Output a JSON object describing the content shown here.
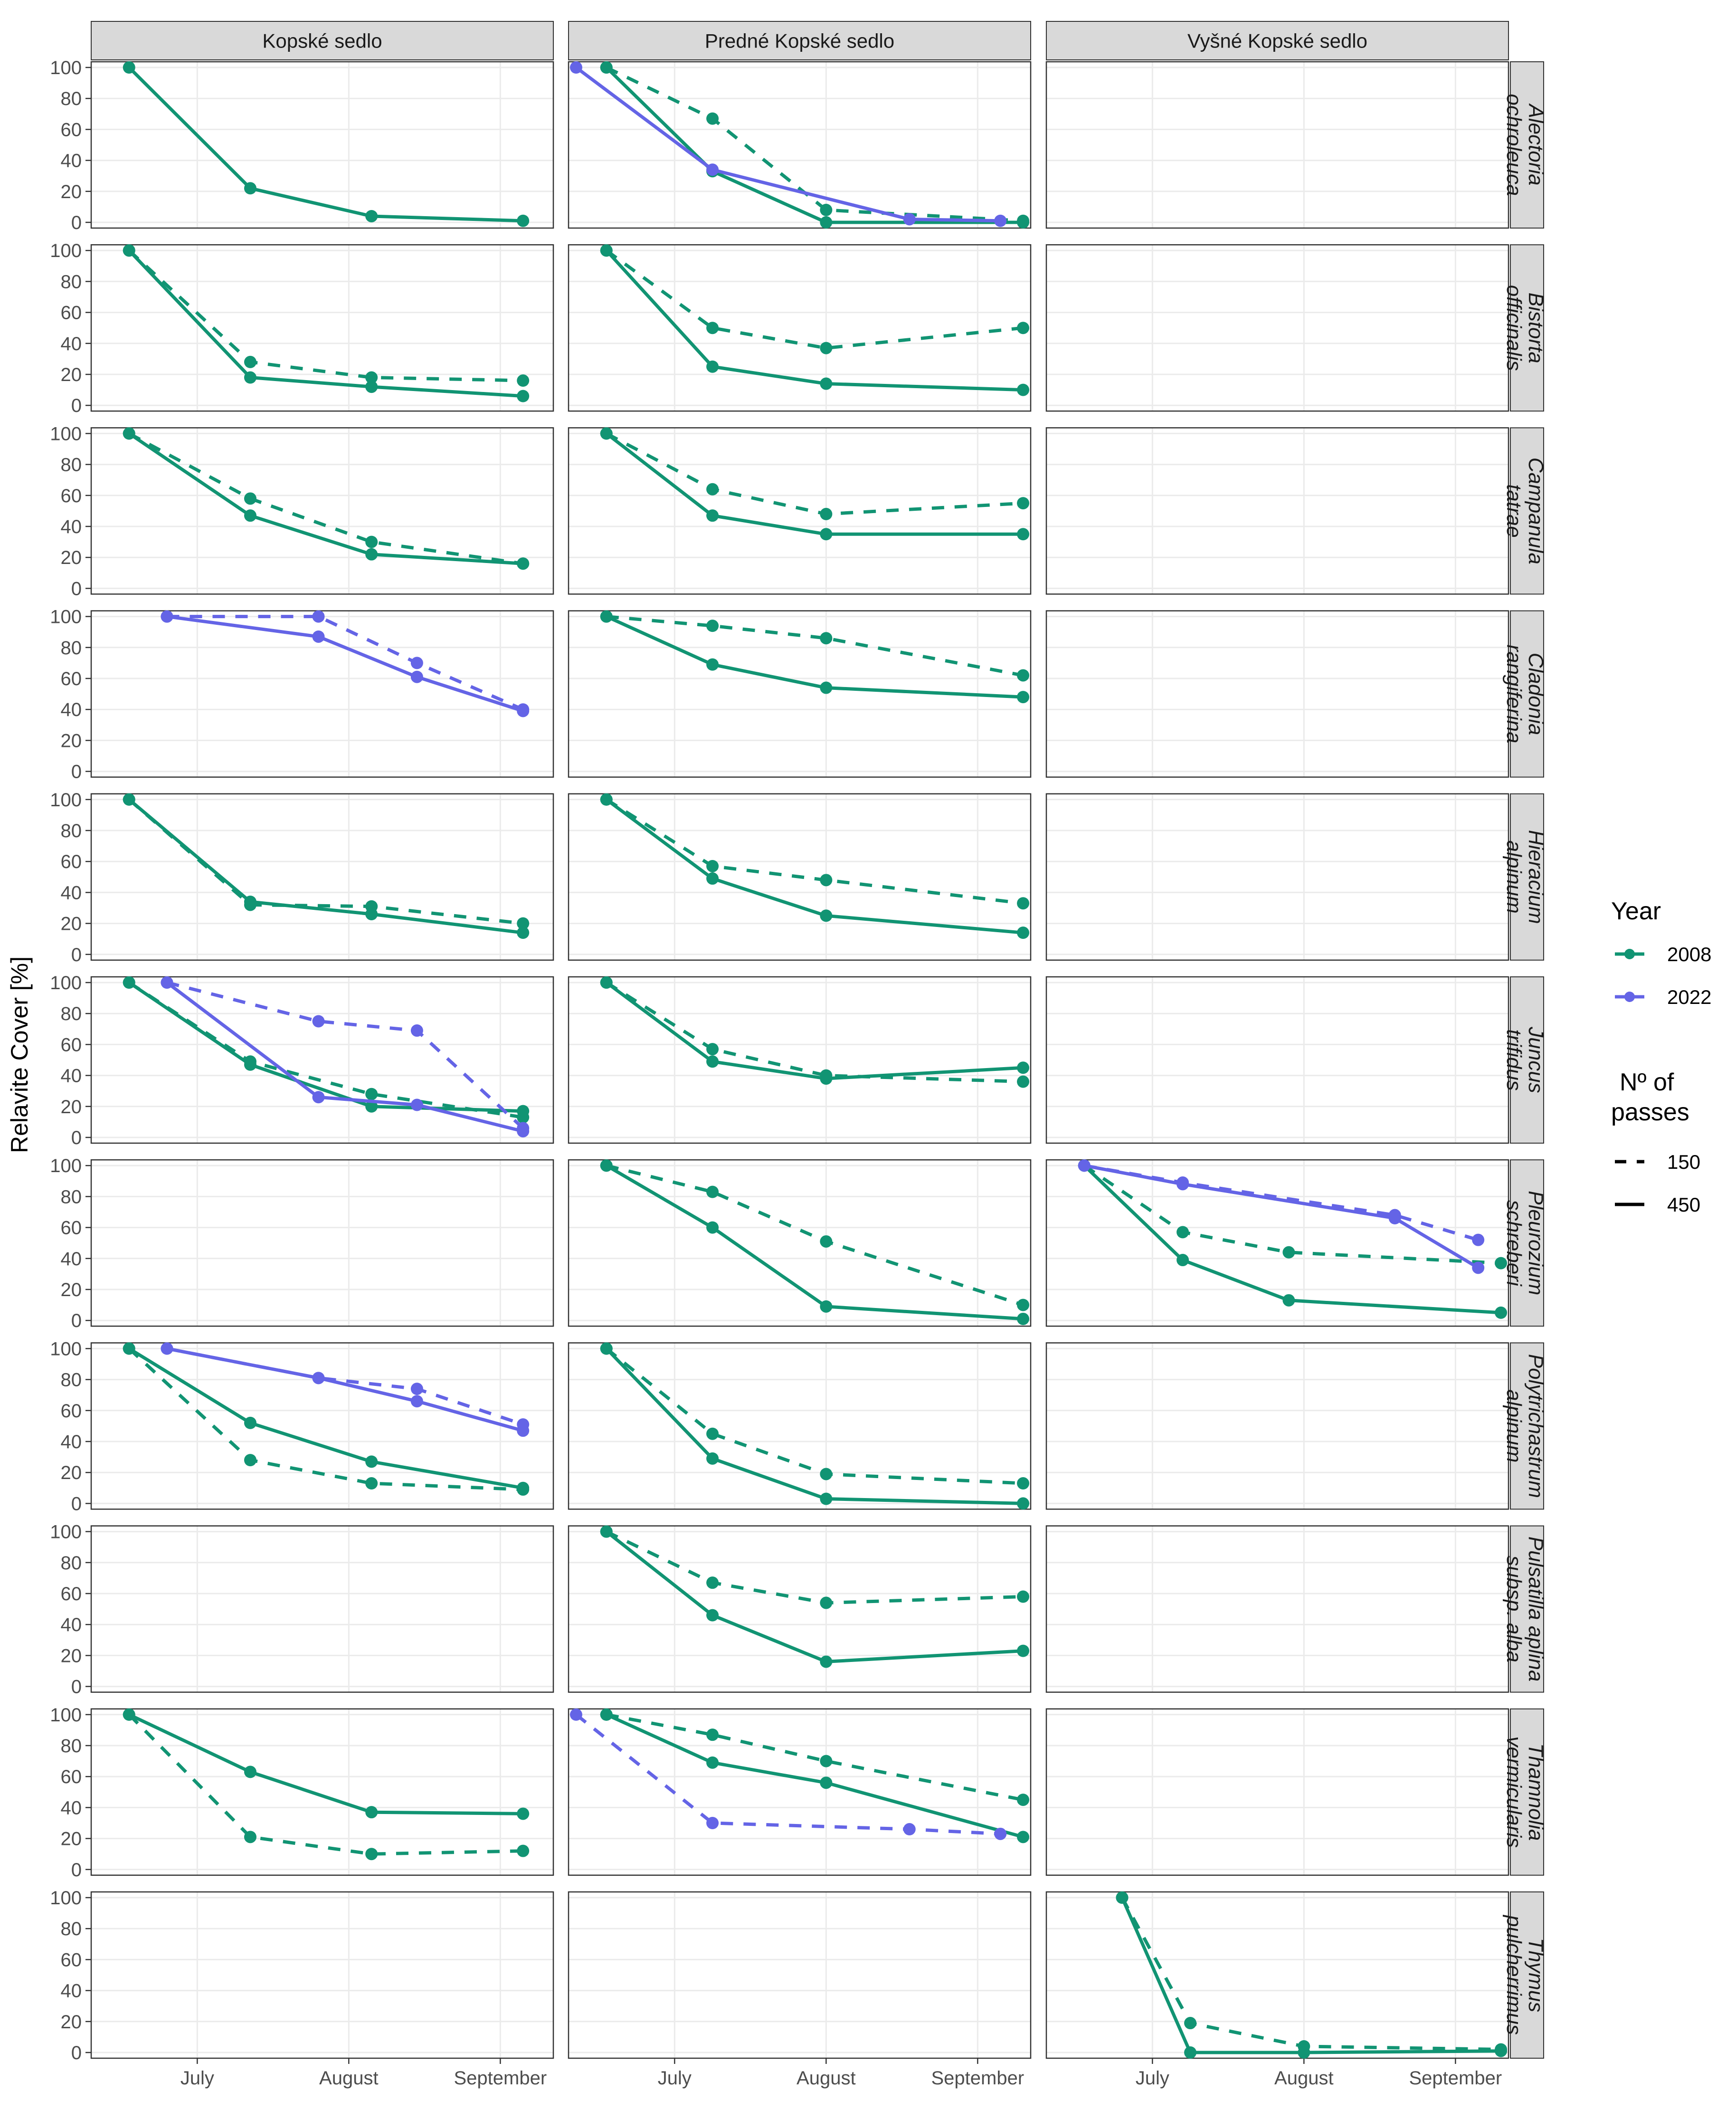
{
  "chart_data": {
    "type": "line",
    "facet_columns": [
      "Kopské sedlo",
      "Predné Kopské sedlo",
      "Vyšné Kopské sedlo"
    ],
    "facet_rows": [
      [
        "Alectoria",
        "ochroleuca"
      ],
      [
        "Bistorta",
        "officinalis"
      ],
      [
        "Campanula",
        "tatrae"
      ],
      [
        "Cladonia",
        "rangiferina"
      ],
      [
        "Hieracium",
        "alpinum"
      ],
      [
        "Juncus",
        "trifidus"
      ],
      [
        "Pleurozium",
        "schreberi"
      ],
      [
        "Polytrichastrum",
        "alpinum"
      ],
      [
        "Pulsatilla aplina",
        "subsp. alba"
      ],
      [
        "Thamnolia",
        "vermicularis"
      ],
      [
        "Thymus",
        "pulcherrimus"
      ]
    ],
    "ylabel": "Relavite Cover [%]",
    "xlabel": "",
    "x_ticks": [
      "July",
      "August",
      "September"
    ],
    "x_tick_positions": [
      1,
      2,
      3
    ],
    "xlim": [
      0.3,
      3.35
    ],
    "y_ticks": [
      "0",
      "20",
      "40",
      "60",
      "80",
      "100"
    ],
    "ylim": [
      0,
      100
    ],
    "colors": {
      "2008": "#119473",
      "2022": "#6464e6"
    },
    "legend": {
      "year_title": "Year",
      "years": [
        "2008",
        "2022"
      ],
      "passes_title_lines": [
        "Nº of",
        "passes"
      ],
      "passes": [
        "150",
        "450"
      ]
    },
    "series": [
      {
        "row": 0,
        "col": 0,
        "year": "2008",
        "passes": "450",
        "x": [
          0.55,
          1.35,
          2.15,
          3.15
        ],
        "y": [
          100,
          22,
          4,
          1
        ]
      },
      {
        "row": 0,
        "col": 1,
        "year": "2008",
        "passes": "150",
        "x": [
          0.55,
          1.25,
          2.0,
          3.3
        ],
        "y": [
          100,
          67,
          8,
          1
        ]
      },
      {
        "row": 0,
        "col": 1,
        "year": "2008",
        "passes": "450",
        "x": [
          0.55,
          1.25,
          2.0,
          3.3
        ],
        "y": [
          100,
          33,
          0,
          0
        ]
      },
      {
        "row": 0,
        "col": 1,
        "year": "2022",
        "passes": "450",
        "x": [
          0.35,
          1.25,
          2.55,
          3.15
        ],
        "y": [
          100,
          34,
          2,
          1
        ]
      },
      {
        "row": 1,
        "col": 0,
        "year": "2008",
        "passes": "150",
        "x": [
          0.55,
          1.35,
          2.15,
          3.15
        ],
        "y": [
          100,
          28,
          18,
          16
        ]
      },
      {
        "row": 1,
        "col": 0,
        "year": "2008",
        "passes": "450",
        "x": [
          0.55,
          1.35,
          2.15,
          3.15
        ],
        "y": [
          100,
          18,
          12,
          6
        ]
      },
      {
        "row": 1,
        "col": 1,
        "year": "2008",
        "passes": "150",
        "x": [
          0.55,
          1.25,
          2.0,
          3.3
        ],
        "y": [
          100,
          50,
          37,
          50
        ]
      },
      {
        "row": 1,
        "col": 1,
        "year": "2008",
        "passes": "450",
        "x": [
          0.55,
          1.25,
          2.0,
          3.3
        ],
        "y": [
          100,
          25,
          14,
          10
        ]
      },
      {
        "row": 2,
        "col": 0,
        "year": "2008",
        "passes": "150",
        "x": [
          0.55,
          1.35,
          2.15,
          3.15
        ],
        "y": [
          100,
          58,
          30,
          16
        ]
      },
      {
        "row": 2,
        "col": 0,
        "year": "2008",
        "passes": "450",
        "x": [
          0.55,
          1.35,
          2.15,
          3.15
        ],
        "y": [
          100,
          47,
          22,
          16
        ]
      },
      {
        "row": 2,
        "col": 1,
        "year": "2008",
        "passes": "150",
        "x": [
          0.55,
          1.25,
          2.0,
          3.3
        ],
        "y": [
          100,
          64,
          48,
          55
        ]
      },
      {
        "row": 2,
        "col": 1,
        "year": "2008",
        "passes": "450",
        "x": [
          0.55,
          1.25,
          2.0,
          3.3
        ],
        "y": [
          100,
          47,
          35,
          35
        ]
      },
      {
        "row": 3,
        "col": 0,
        "year": "2022",
        "passes": "150",
        "x": [
          0.8,
          1.8,
          2.45,
          3.15
        ],
        "y": [
          100,
          100,
          70,
          40
        ]
      },
      {
        "row": 3,
        "col": 0,
        "year": "2022",
        "passes": "450",
        "x": [
          0.8,
          1.8,
          2.45,
          3.15
        ],
        "y": [
          100,
          87,
          61,
          39
        ]
      },
      {
        "row": 3,
        "col": 1,
        "year": "2008",
        "passes": "150",
        "x": [
          0.55,
          1.25,
          2.0,
          3.3
        ],
        "y": [
          100,
          94,
          86,
          62
        ]
      },
      {
        "row": 3,
        "col": 1,
        "year": "2008",
        "passes": "450",
        "x": [
          0.55,
          1.25,
          2.0,
          3.3
        ],
        "y": [
          100,
          69,
          54,
          48
        ]
      },
      {
        "row": 4,
        "col": 0,
        "year": "2008",
        "passes": "150",
        "x": [
          0.55,
          1.35,
          2.15,
          3.15
        ],
        "y": [
          100,
          32,
          31,
          20
        ]
      },
      {
        "row": 4,
        "col": 0,
        "year": "2008",
        "passes": "450",
        "x": [
          0.55,
          1.35,
          2.15,
          3.15
        ],
        "y": [
          100,
          34,
          26,
          14
        ]
      },
      {
        "row": 4,
        "col": 1,
        "year": "2008",
        "passes": "150",
        "x": [
          0.55,
          1.25,
          2.0,
          3.3
        ],
        "y": [
          100,
          57,
          48,
          33
        ]
      },
      {
        "row": 4,
        "col": 1,
        "year": "2008",
        "passes": "450",
        "x": [
          0.55,
          1.25,
          2.0,
          3.3
        ],
        "y": [
          100,
          49,
          25,
          14
        ]
      },
      {
        "row": 5,
        "col": 0,
        "year": "2008",
        "passes": "150",
        "x": [
          0.55,
          1.35,
          2.15,
          3.15
        ],
        "y": [
          100,
          49,
          28,
          13
        ]
      },
      {
        "row": 5,
        "col": 0,
        "year": "2008",
        "passes": "450",
        "x": [
          0.55,
          1.35,
          2.15,
          3.15
        ],
        "y": [
          100,
          47,
          20,
          17
        ]
      },
      {
        "row": 5,
        "col": 0,
        "year": "2022",
        "passes": "150",
        "x": [
          0.8,
          1.8,
          2.45,
          3.15
        ],
        "y": [
          100,
          75,
          69,
          6
        ]
      },
      {
        "row": 5,
        "col": 0,
        "year": "2022",
        "passes": "450",
        "x": [
          0.8,
          1.8,
          2.45,
          3.15
        ],
        "y": [
          100,
          26,
          21,
          4
        ]
      },
      {
        "row": 5,
        "col": 1,
        "year": "2008",
        "passes": "150",
        "x": [
          0.55,
          1.25,
          2.0,
          3.3
        ],
        "y": [
          100,
          57,
          40,
          36
        ]
      },
      {
        "row": 5,
        "col": 1,
        "year": "2008",
        "passes": "450",
        "x": [
          0.55,
          1.25,
          2.0,
          3.3
        ],
        "y": [
          100,
          49,
          38,
          45
        ]
      },
      {
        "row": 6,
        "col": 1,
        "year": "2008",
        "passes": "150",
        "x": [
          0.55,
          1.25,
          2.0,
          3.3
        ],
        "y": [
          100,
          83,
          51,
          10
        ]
      },
      {
        "row": 6,
        "col": 1,
        "year": "2008",
        "passes": "450",
        "x": [
          0.55,
          1.25,
          2.0,
          3.3
        ],
        "y": [
          100,
          60,
          9,
          1
        ]
      },
      {
        "row": 6,
        "col": 2,
        "year": "2008",
        "passes": "150",
        "x": [
          0.55,
          1.2,
          1.9,
          3.3
        ],
        "y": [
          100,
          57,
          44,
          37
        ]
      },
      {
        "row": 6,
        "col": 2,
        "year": "2008",
        "passes": "450",
        "x": [
          0.55,
          1.2,
          1.9,
          3.3
        ],
        "y": [
          100,
          39,
          13,
          5
        ]
      },
      {
        "row": 6,
        "col": 2,
        "year": "2022",
        "passes": "150",
        "x": [
          0.55,
          1.2,
          2.6,
          3.15
        ],
        "y": [
          100,
          89,
          68,
          52
        ]
      },
      {
        "row": 6,
        "col": 2,
        "year": "2022",
        "passes": "450",
        "x": [
          0.55,
          1.2,
          2.6,
          3.15
        ],
        "y": [
          100,
          88,
          66,
          34
        ]
      },
      {
        "row": 7,
        "col": 0,
        "year": "2008",
        "passes": "150",
        "x": [
          0.55,
          1.35,
          2.15,
          3.15
        ],
        "y": [
          100,
          28,
          13,
          9
        ]
      },
      {
        "row": 7,
        "col": 0,
        "year": "2008",
        "passes": "450",
        "x": [
          0.55,
          1.35,
          2.15,
          3.15
        ],
        "y": [
          100,
          52,
          27,
          10
        ]
      },
      {
        "row": 7,
        "col": 0,
        "year": "2022",
        "passes": "150",
        "x": [
          0.8,
          1.8,
          2.45,
          3.15
        ],
        "y": [
          100,
          81,
          74,
          51
        ]
      },
      {
        "row": 7,
        "col": 0,
        "year": "2022",
        "passes": "450",
        "x": [
          0.8,
          1.8,
          2.45,
          3.15
        ],
        "y": [
          100,
          81,
          66,
          47
        ]
      },
      {
        "row": 7,
        "col": 1,
        "year": "2008",
        "passes": "150",
        "x": [
          0.55,
          1.25,
          2.0,
          3.3
        ],
        "y": [
          100,
          45,
          19,
          13
        ]
      },
      {
        "row": 7,
        "col": 1,
        "year": "2008",
        "passes": "450",
        "x": [
          0.55,
          1.25,
          2.0,
          3.3
        ],
        "y": [
          100,
          29,
          3,
          0
        ]
      },
      {
        "row": 8,
        "col": 1,
        "year": "2008",
        "passes": "150",
        "x": [
          0.55,
          1.25,
          2.0,
          3.3
        ],
        "y": [
          100,
          67,
          54,
          58
        ]
      },
      {
        "row": 8,
        "col": 1,
        "year": "2008",
        "passes": "450",
        "x": [
          0.55,
          1.25,
          2.0,
          3.3
        ],
        "y": [
          100,
          46,
          16,
          23
        ]
      },
      {
        "row": 9,
        "col": 0,
        "year": "2008",
        "passes": "150",
        "x": [
          0.55,
          1.35,
          2.15,
          3.15
        ],
        "y": [
          100,
          21,
          10,
          12
        ]
      },
      {
        "row": 9,
        "col": 0,
        "year": "2008",
        "passes": "450",
        "x": [
          0.55,
          1.35,
          2.15,
          3.15
        ],
        "y": [
          100,
          63,
          37,
          36
        ]
      },
      {
        "row": 9,
        "col": 1,
        "year": "2008",
        "passes": "150",
        "x": [
          0.55,
          1.25,
          2.0,
          3.3
        ],
        "y": [
          100,
          87,
          70,
          45
        ]
      },
      {
        "row": 9,
        "col": 1,
        "year": "2008",
        "passes": "450",
        "x": [
          0.55,
          1.25,
          2.0,
          3.3
        ],
        "y": [
          100,
          69,
          56,
          21
        ]
      },
      {
        "row": 9,
        "col": 1,
        "year": "2022",
        "passes": "150",
        "x": [
          0.35,
          1.25,
          2.55,
          3.15
        ],
        "y": [
          100,
          30,
          26,
          23
        ]
      },
      {
        "row": 10,
        "col": 2,
        "year": "2008",
        "passes": "150",
        "x": [
          0.8,
          1.25,
          2.0,
          3.3
        ],
        "y": [
          100,
          19,
          4,
          2
        ]
      },
      {
        "row": 10,
        "col": 2,
        "year": "2008",
        "passes": "450",
        "x": [
          0.8,
          1.25,
          2.0,
          3.3
        ],
        "y": [
          100,
          0,
          0,
          1
        ]
      }
    ]
  }
}
